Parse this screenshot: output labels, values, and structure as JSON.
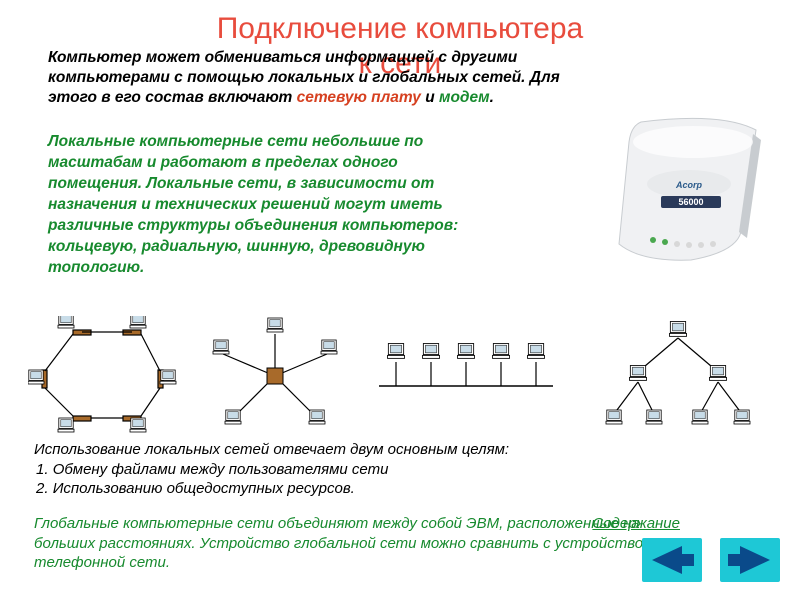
{
  "title": {
    "line1": "Подключение компьютера",
    "line2": "к сети",
    "color": "#e84c3d",
    "fontsize": 30
  },
  "intro": {
    "prefix": "Компьютер может обмениваться информацией с другими компьютерами с помощью локальных и глобальных сетей. Для этого в его состав включают ",
    "hl1": "сетевую плату",
    "and": " и ",
    "hl2": "модем",
    "suffix": ".",
    "hl1_color": "#d64020",
    "hl2_color": "#178a2e"
  },
  "para2": {
    "text": "Локальные компьютерные сети небольшие по масштабам и работают в пределах одного помещения. Локальные сети, в зависимости от назначения и технических решений могут иметь различные структуры объединения компьютеров: кольцевую, радиальную, шинную, древовидную топологию.",
    "color": "#178a2e"
  },
  "modem": {
    "body_color": "#f2f3f4",
    "shadow_color": "#b8bcc0",
    "indicator_color": "#4aa84f",
    "label": "56000"
  },
  "diagrams": {
    "node_fill": "#ffffff",
    "node_stroke": "#000000",
    "screen_fill": "#c8dce8",
    "line_color": "#000000",
    "hub_fill": "#a86a2a",
    "ring": {
      "type": "network-ring",
      "node_count": 6
    },
    "star": {
      "type": "network-star",
      "node_count": 5
    },
    "bus": {
      "type": "network-bus",
      "node_count": 5
    },
    "tree": {
      "type": "network-tree",
      "levels": [
        1,
        2,
        4
      ]
    }
  },
  "para3": {
    "lead": "Использование локальных сетей отвечает двум основным целям:",
    "items": [
      "Обмену файлами между пользователями сети",
      "Использованию общедоступных ресурсов."
    ]
  },
  "para4": {
    "text": "Глобальные компьютерные сети объединяют между собой ЭВМ, расположенные на больших расстояниях. Устройство глобальной сети можно сравнить с устройством телефонной сети.",
    "color": "#178a2e"
  },
  "toc_link": "Содержание",
  "nav": {
    "bg": "#1ec8d6",
    "arrow_fill": "#0a4a8a",
    "prev": "prev",
    "next": "next"
  }
}
